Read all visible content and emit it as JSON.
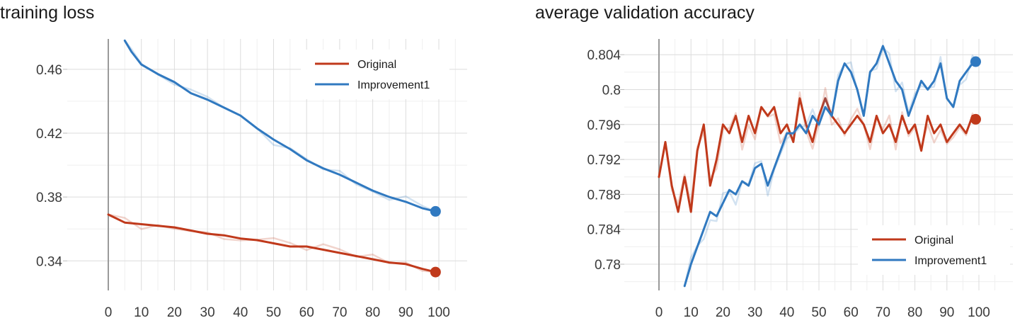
{
  "chart_data": [
    {
      "type": "line",
      "title": "training loss",
      "xlabel": "",
      "ylabel": "",
      "xlim": [
        0,
        100
      ],
      "ylim": [
        0.3215,
        0.479
      ],
      "xticks": [
        0,
        10,
        20,
        30,
        40,
        50,
        60,
        70,
        80,
        90,
        100
      ],
      "xtick_labels": [
        "0",
        "10",
        "20",
        "30",
        "40",
        "50",
        "60",
        "70",
        "80",
        "90",
        "100"
      ],
      "yticks": [
        0.34,
        0.38,
        0.42,
        0.46
      ],
      "ytick_labels": [
        "0.34",
        "0.38",
        "0.42",
        "0.46"
      ],
      "grid": true,
      "legend_position": "top-right",
      "series": [
        {
          "name": "Original",
          "color": "#c0391b",
          "x": [
            0,
            5,
            10,
            15,
            20,
            25,
            30,
            35,
            40,
            45,
            50,
            55,
            60,
            65,
            70,
            75,
            80,
            85,
            90,
            95,
            99
          ],
          "values": [
            0.369,
            0.364,
            0.363,
            0.362,
            0.361,
            0.359,
            0.357,
            0.356,
            0.354,
            0.353,
            0.351,
            0.349,
            0.349,
            0.347,
            0.345,
            0.343,
            0.341,
            0.339,
            0.338,
            0.335,
            0.333
          ]
        },
        {
          "name": "Improvement1",
          "color": "#3079c0",
          "x": [
            5,
            7,
            10,
            15,
            20,
            25,
            30,
            35,
            40,
            45,
            50,
            55,
            60,
            65,
            70,
            75,
            80,
            85,
            90,
            95,
            99
          ],
          "values": [
            0.478,
            0.471,
            0.463,
            0.457,
            0.452,
            0.445,
            0.441,
            0.436,
            0.431,
            0.423,
            0.416,
            0.41,
            0.403,
            0.398,
            0.394,
            0.389,
            0.384,
            0.38,
            0.377,
            0.373,
            0.371
          ]
        }
      ]
    },
    {
      "type": "line",
      "title": "average validation accuracy",
      "xlabel": "",
      "ylabel": "",
      "xlim": [
        0,
        100
      ],
      "ylim": [
        0.777,
        0.8058
      ],
      "xticks": [
        0,
        10,
        20,
        30,
        40,
        50,
        60,
        70,
        80,
        90,
        100
      ],
      "xtick_labels": [
        "0",
        "10",
        "20",
        "30",
        "40",
        "50",
        "60",
        "70",
        "80",
        "90",
        "100"
      ],
      "yticks": [
        0.78,
        0.784,
        0.788,
        0.792,
        0.796,
        0.8,
        0.804
      ],
      "ytick_labels": [
        "0.78",
        "0.784",
        "0.788",
        "0.792",
        "0.796",
        "0.8",
        "0.804"
      ],
      "grid": true,
      "legend_position": "bottom-right",
      "series": [
        {
          "name": "Original",
          "color": "#c0391b",
          "x": [
            0,
            2,
            4,
            6,
            8,
            10,
            12,
            14,
            16,
            18,
            20,
            22,
            24,
            26,
            28,
            30,
            32,
            34,
            36,
            38,
            40,
            42,
            44,
            46,
            48,
            50,
            52,
            54,
            56,
            58,
            60,
            62,
            64,
            66,
            68,
            70,
            72,
            74,
            76,
            78,
            80,
            82,
            84,
            86,
            88,
            90,
            92,
            94,
            96,
            98,
            99
          ],
          "values": [
            0.79,
            0.794,
            0.789,
            0.786,
            0.79,
            0.786,
            0.793,
            0.796,
            0.789,
            0.792,
            0.796,
            0.795,
            0.797,
            0.794,
            0.797,
            0.795,
            0.798,
            0.797,
            0.798,
            0.795,
            0.796,
            0.794,
            0.799,
            0.796,
            0.794,
            0.797,
            0.799,
            0.797,
            0.796,
            0.795,
            0.796,
            0.797,
            0.796,
            0.794,
            0.797,
            0.795,
            0.796,
            0.794,
            0.797,
            0.795,
            0.796,
            0.793,
            0.797,
            0.795,
            0.796,
            0.794,
            0.795,
            0.796,
            0.795,
            0.797,
            0.7966
          ]
        },
        {
          "name": "Improvement1",
          "color": "#3079c0",
          "x": [
            8,
            10,
            12,
            14,
            16,
            18,
            20,
            22,
            24,
            26,
            28,
            30,
            32,
            34,
            36,
            38,
            40,
            42,
            44,
            46,
            48,
            50,
            52,
            54,
            56,
            58,
            60,
            62,
            64,
            66,
            68,
            70,
            72,
            74,
            76,
            78,
            80,
            82,
            84,
            86,
            88,
            90,
            92,
            94,
            96,
            98,
            99
          ],
          "values": [
            0.7775,
            0.78,
            0.782,
            0.784,
            0.786,
            0.7855,
            0.787,
            0.7885,
            0.788,
            0.7895,
            0.789,
            0.791,
            0.7915,
            0.789,
            0.791,
            0.793,
            0.795,
            0.795,
            0.796,
            0.795,
            0.797,
            0.796,
            0.798,
            0.797,
            0.801,
            0.803,
            0.802,
            0.8,
            0.797,
            0.802,
            0.803,
            0.805,
            0.803,
            0.801,
            0.8,
            0.797,
            0.799,
            0.801,
            0.8,
            0.801,
            0.803,
            0.799,
            0.798,
            0.801,
            0.802,
            0.803,
            0.8032
          ]
        }
      ]
    }
  ]
}
